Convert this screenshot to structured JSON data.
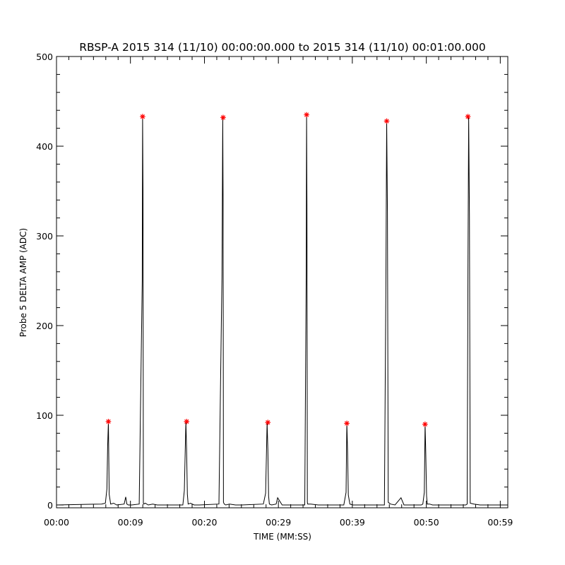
{
  "chart_data": {
    "type": "line",
    "title": "RBSP-A 2015 314 (11/10) 00:00:00.000 to 2015 314 (11/10) 00:01:00.000",
    "xlabel": "TIME (MM:SS)",
    "ylabel": "Probe 5 DELTA AMP (ADC)",
    "xlim": [
      0,
      60
    ],
    "ylim": [
      0,
      500
    ],
    "x_tick_values": [
      0,
      9.83,
      19.67,
      29.5,
      39.33,
      49.17,
      59
    ],
    "x_tick_labels": [
      "00:00",
      "00:09",
      "00:20",
      "00:29",
      "00:39",
      "00:50",
      "00:59"
    ],
    "y_tick_values": [
      0,
      100,
      200,
      300,
      400,
      500
    ],
    "y_tick_labels": [
      "0",
      "100",
      "200",
      "300",
      "400",
      "500"
    ],
    "grid": false,
    "series": [
      {
        "style": "line",
        "color": "#000000",
        "x": [
          0.0,
          6.0,
          6.5,
          6.7,
          6.8,
          6.9,
          7.0,
          7.2,
          7.6,
          8.0,
          9.0,
          9.2,
          9.35,
          9.55,
          10.0,
          11.0,
          11.4,
          11.45,
          11.5,
          11.55,
          11.6,
          11.8,
          12.2,
          12.8,
          13.4,
          16.8,
          17.0,
          17.2,
          17.3,
          17.4,
          17.5,
          17.8,
          18.3,
          19.0,
          21.6,
          22.0,
          22.1,
          22.15,
          22.2,
          22.3,
          22.5,
          23.0,
          23.8,
          24.6,
          27.5,
          27.8,
          28.0,
          28.1,
          28.2,
          28.3,
          28.6,
          29.2,
          29.4,
          30.0,
          33.0,
          33.2,
          33.25,
          33.3,
          33.35,
          33.4,
          33.8,
          34.8,
          38.2,
          38.5,
          38.6,
          38.7,
          38.8,
          39.0,
          39.4,
          40.0,
          43.6,
          43.8,
          43.9,
          44.0,
          44.1,
          44.4,
          45.0,
          45.8,
          46.2,
          48.5,
          48.7,
          48.9,
          49.0,
          49.1,
          49.2,
          49.3,
          49.6,
          50.0,
          52.0,
          54.4,
          54.6,
          54.7,
          54.8,
          54.9,
          55.0,
          55.5,
          56.3,
          60.0
        ],
        "y": [
          0,
          1,
          2,
          18,
          65,
          93,
          12,
          1,
          2,
          0,
          1,
          9,
          1,
          0,
          0,
          1,
          250,
          433,
          350,
          2,
          1,
          2,
          0,
          1,
          0,
          0,
          16,
          93,
          62,
          12,
          1,
          2,
          0,
          0,
          1,
          255,
          432,
          340,
          3,
          1,
          0,
          1,
          0,
          0,
          1,
          13,
          92,
          61,
          10,
          1,
          0,
          1,
          8,
          0,
          0,
          260,
          435,
          336,
          3,
          1,
          1,
          0,
          0,
          14,
          91,
          58,
          11,
          1,
          0,
          0,
          0,
          260,
          428,
          325,
          3,
          1,
          0,
          8,
          0,
          0,
          1,
          14,
          90,
          57,
          10,
          1,
          1,
          0,
          0,
          0,
          1,
          262,
          433,
          322,
          2,
          1,
          0,
          0
        ]
      },
      {
        "style": "marker",
        "marker": "asterisk",
        "color": "#ff0000",
        "x": [
          6.9,
          11.45,
          17.3,
          22.15,
          28.1,
          33.25,
          38.6,
          43.9,
          49.0,
          54.7
        ],
        "y": [
          93,
          433,
          93,
          432,
          92,
          435,
          91,
          428,
          90,
          433
        ]
      }
    ]
  }
}
